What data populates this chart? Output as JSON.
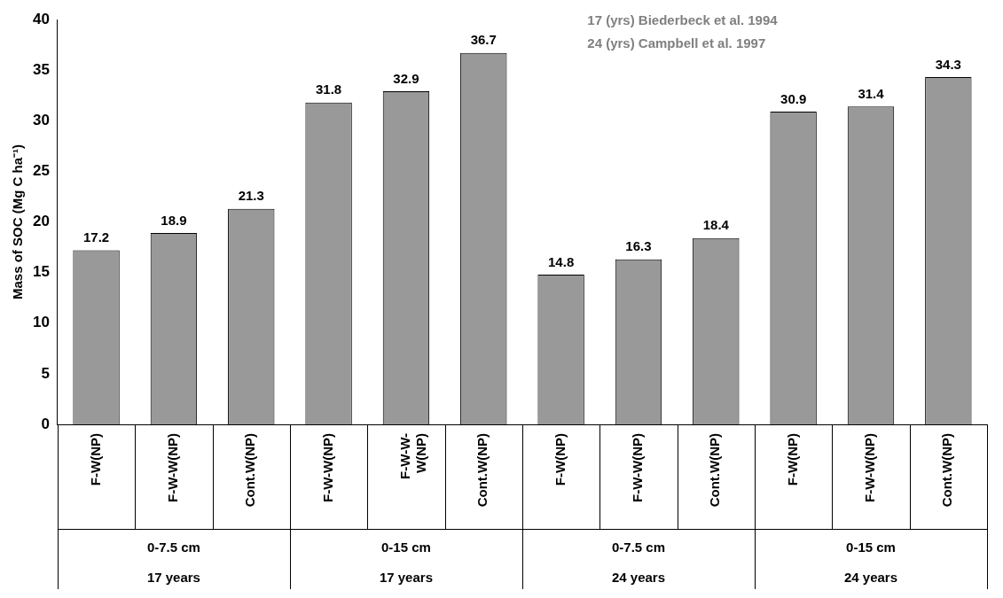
{
  "chart_data": {
    "type": "bar",
    "ylabel": "Mass of SOC (Mg C ha⁻¹)",
    "categories": [
      "F-W(NP)",
      "F-W-W(NP)",
      "Cont.W(NP)",
      "F-W-W(NP)",
      "F-W-W-W(NP)",
      "Cont.W(NP)",
      "F-W(NP)",
      "F-W-W(NP)",
      "Cont.W(NP)",
      "F-W(NP)",
      "F-W-W(NP)",
      "Cont.W(NP)"
    ],
    "values": [
      17.2,
      18.9,
      21.3,
      31.8,
      32.9,
      36.7,
      14.8,
      16.3,
      18.4,
      30.9,
      31.4,
      34.3
    ],
    "color": "#999999",
    "ylim": [
      0,
      40
    ],
    "yticks": [
      0,
      5,
      10,
      15,
      20,
      25,
      30,
      35,
      40
    ],
    "grid": false,
    "legend": false,
    "data_labels": true,
    "annotations": [
      "0-7.5 cm",
      "0-15 cm",
      "0-7.5 cm",
      "0-15 cm",
      "17 years",
      "17 years",
      "24 years",
      "24 years",
      "17 (yrs) Biederbeck et al. 1994",
      "24 (yrs) Campbell et al. 1997"
    ]
  }
}
